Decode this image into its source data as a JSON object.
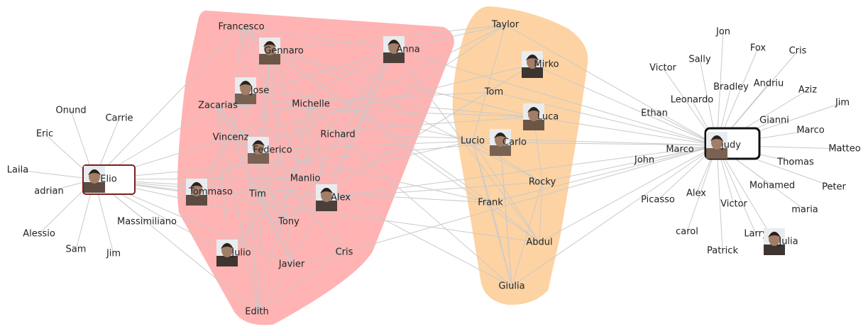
{
  "nodes": [
    "Elio",
    "Onund",
    "Carrie",
    "Eric",
    "Laila",
    "adrian",
    "Alessio",
    "Sam",
    "Jim",
    "Massimiliano",
    "Francesco",
    "Gennaro",
    "Anna",
    "Jose",
    "Zacarias",
    "Michelle",
    "Richard",
    "Vincenz",
    "Federico",
    "Manlio",
    "Tommaso",
    "Tim",
    "Alex",
    "Tony",
    "Julio",
    "Javier",
    "Cris",
    "Edith",
    "Taylor",
    "Mirko",
    "Tom",
    "Luca",
    "Lucio",
    "Carlo",
    "Rocky",
    "Frank",
    "Abdul",
    "Giulia",
    "judy",
    "Jon",
    "Fox",
    "Cris",
    "Sally",
    "Victor",
    "Bradley",
    "Andriu",
    "Aziz",
    "Leonardo",
    "Jim",
    "Ethan",
    "Gianni",
    "Marco",
    "Marco",
    "Matteo",
    "John",
    "Thomas",
    "Peter",
    "Mohamed",
    "Picasso",
    "Alex",
    "Victor",
    "maria",
    "carol",
    "Larry",
    "Julia",
    "Patrick"
  ]
}
